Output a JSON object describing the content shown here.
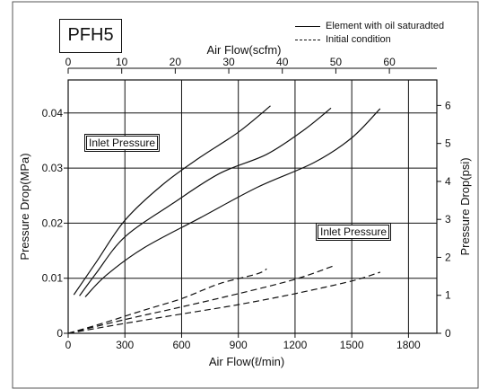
{
  "chart_data": {
    "type": "line",
    "title": "PFH5",
    "xlabel": "Air Flow(ℓ/min)",
    "ylabel": "Pressure Drop(MPa)",
    "x2label": "Air Flow(scfm)",
    "y2label": "Pressure Drop(psi)",
    "xlim": [
      0,
      1950
    ],
    "ylim": [
      0,
      0.046
    ],
    "x_ticks": [
      0,
      300,
      600,
      900,
      1200,
      1500,
      1800
    ],
    "y_ticks": [
      0,
      0.01,
      0.02,
      0.03,
      0.04
    ],
    "x2_ticks": [
      0,
      10,
      20,
      30,
      40,
      50,
      60
    ],
    "y2_ticks": [
      0,
      1,
      2,
      3,
      4,
      5,
      6
    ],
    "legend_position": "top-right",
    "annotations": [
      "Inlet Pressure",
      "Inlet Pressure"
    ],
    "grid": true,
    "series": [
      {
        "name": "Element with oil saturadted",
        "style": "solid",
        "x": [
          30,
          150,
          300,
          500,
          700,
          900,
          1070
        ],
        "y": [
          0.007,
          0.013,
          0.0205,
          0.027,
          0.032,
          0.0365,
          0.0413
        ]
      },
      {
        "name": "Element with oil saturadted",
        "style": "solid",
        "x": [
          60,
          150,
          300,
          550,
          800,
          1050,
          1250,
          1390
        ],
        "y": [
          0.0068,
          0.011,
          0.0175,
          0.0235,
          0.029,
          0.0325,
          0.037,
          0.0409
        ]
      },
      {
        "name": "Element with oil saturadted",
        "style": "solid",
        "x": [
          90,
          200,
          400,
          700,
          1000,
          1300,
          1500,
          1650
        ],
        "y": [
          0.0066,
          0.0105,
          0.0155,
          0.021,
          0.0265,
          0.031,
          0.0355,
          0.0408
        ]
      },
      {
        "name": "Initial condition",
        "style": "dashed",
        "x": [
          0,
          200,
          400,
          600,
          800,
          1000,
          1050
        ],
        "y": [
          0,
          0.002,
          0.0042,
          0.0063,
          0.009,
          0.0108,
          0.0117
        ]
      },
      {
        "name": "Initial condition",
        "style": "dashed",
        "x": [
          0,
          300,
          600,
          900,
          1200,
          1400
        ],
        "y": [
          0,
          0.0025,
          0.0048,
          0.0072,
          0.0098,
          0.0122
        ]
      },
      {
        "name": "Initial condition",
        "style": "dashed",
        "x": [
          0,
          300,
          600,
          900,
          1200,
          1500,
          1650
        ],
        "y": [
          0,
          0.0018,
          0.0035,
          0.0052,
          0.0072,
          0.0095,
          0.0111
        ]
      }
    ]
  },
  "legend": {
    "solid_label": "Element with oil saturadted",
    "dashed_label": "Initial condition"
  }
}
